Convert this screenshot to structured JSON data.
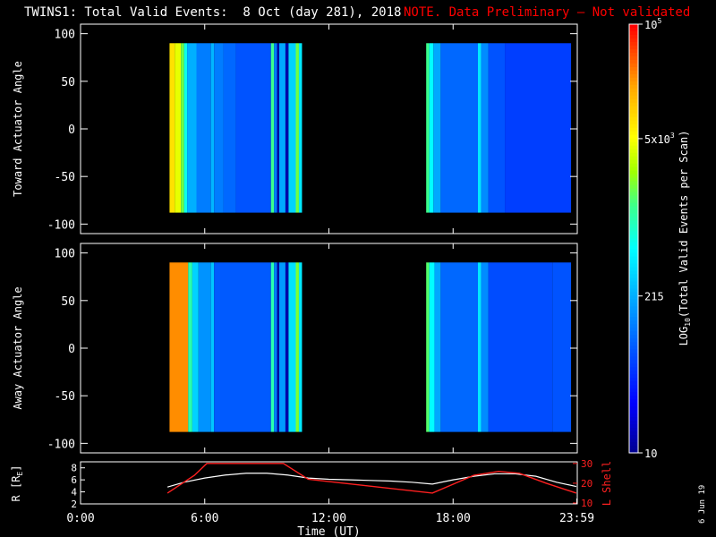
{
  "header": {
    "title": "TWINS1: Total Valid Events:  8 Oct (day 281), 2018",
    "note": "NOTE. Data Preliminary — Not validated"
  },
  "footer": {
    "date_stamp": "6 Jun 19"
  },
  "colors": {
    "background": "#000000",
    "axes": "#ffffff",
    "note_red": "#ff0000",
    "r_line": "#ffffff",
    "lshell_line": "#ff2020"
  },
  "chart_data": [
    {
      "type": "heatmap",
      "name": "toward-panel",
      "ylabel": "Toward Actuator Angle",
      "xlim": [
        0,
        24
      ],
      "ylim": [
        -110,
        110
      ],
      "yticks": [
        "100",
        "50",
        "0",
        "-50",
        "-100"
      ],
      "ytick_values": [
        100,
        50,
        0,
        -50,
        -100
      ],
      "data_blocks": [
        {
          "start_hour": 4.3,
          "end_hour": 10.7,
          "angle_range": [
            -88,
            90
          ],
          "columns": [
            {
              "start": 4.3,
              "end": 4.55,
              "level": 0.78
            },
            {
              "start": 4.55,
              "end": 4.85,
              "level": 0.72
            },
            {
              "start": 4.85,
              "end": 5.0,
              "level": 0.62
            },
            {
              "start": 5.0,
              "end": 5.15,
              "level": 0.5
            },
            {
              "start": 5.15,
              "end": 5.6,
              "level": 0.37
            },
            {
              "start": 5.6,
              "end": 6.3,
              "level": 0.3
            },
            {
              "start": 6.3,
              "end": 6.45,
              "level": 0.38
            },
            {
              "start": 6.45,
              "end": 6.9,
              "level": 0.3
            },
            {
              "start": 6.9,
              "end": 7.5,
              "level": 0.27
            },
            {
              "start": 7.5,
              "end": 9.2,
              "level": 0.24
            },
            {
              "start": 9.2,
              "end": 9.35,
              "level": 0.58
            },
            {
              "start": 9.35,
              "end": 9.5,
              "level": 0.3
            },
            {
              "start": 9.5,
              "end": 9.6,
              "level": 0.02
            },
            {
              "start": 9.6,
              "end": 9.9,
              "level": 0.36
            },
            {
              "start": 9.9,
              "end": 10.05,
              "level": 0.03
            },
            {
              "start": 10.05,
              "end": 10.4,
              "level": 0.42
            },
            {
              "start": 10.4,
              "end": 10.55,
              "level": 0.62
            },
            {
              "start": 10.55,
              "end": 10.7,
              "level": 0.45
            }
          ]
        },
        {
          "start_hour": 16.7,
          "end_hour": 23.7,
          "angle_range": [
            -88,
            90
          ],
          "columns": [
            {
              "start": 16.7,
              "end": 16.85,
              "level": 0.58
            },
            {
              "start": 16.85,
              "end": 17.05,
              "level": 0.48
            },
            {
              "start": 17.05,
              "end": 17.4,
              "level": 0.36
            },
            {
              "start": 17.4,
              "end": 19.2,
              "level": 0.27
            },
            {
              "start": 19.2,
              "end": 19.35,
              "level": 0.45
            },
            {
              "start": 19.35,
              "end": 19.7,
              "level": 0.32
            },
            {
              "start": 19.7,
              "end": 20.5,
              "level": 0.24
            },
            {
              "start": 20.5,
              "end": 23.7,
              "level": 0.21
            }
          ]
        }
      ]
    },
    {
      "type": "heatmap",
      "name": "away-panel",
      "ylabel": "Away Actuator Angle",
      "xlim": [
        0,
        24
      ],
      "ylim": [
        -110,
        110
      ],
      "yticks": [
        "100",
        "50",
        "0",
        "-50",
        "-100"
      ],
      "ytick_values": [
        100,
        50,
        0,
        -50,
        -100
      ],
      "data_blocks": [
        {
          "start_hour": 4.3,
          "end_hour": 10.7,
          "angle_range": [
            -88,
            90
          ],
          "columns": [
            {
              "start": 4.3,
              "end": 5.2,
              "level": 0.88
            },
            {
              "start": 5.2,
              "end": 5.4,
              "level": 0.55
            },
            {
              "start": 5.4,
              "end": 5.7,
              "level": 0.42
            },
            {
              "start": 5.7,
              "end": 6.3,
              "level": 0.33
            },
            {
              "start": 6.3,
              "end": 6.45,
              "level": 0.4
            },
            {
              "start": 6.45,
              "end": 9.2,
              "level": 0.25
            },
            {
              "start": 9.2,
              "end": 9.35,
              "level": 0.55
            },
            {
              "start": 9.35,
              "end": 9.5,
              "level": 0.3
            },
            {
              "start": 9.5,
              "end": 9.6,
              "level": 0.02
            },
            {
              "start": 9.6,
              "end": 9.9,
              "level": 0.34
            },
            {
              "start": 9.9,
              "end": 10.05,
              "level": 0.03
            },
            {
              "start": 10.05,
              "end": 10.4,
              "level": 0.44
            },
            {
              "start": 10.4,
              "end": 10.55,
              "level": 0.63
            },
            {
              "start": 10.55,
              "end": 10.7,
              "level": 0.45
            }
          ]
        },
        {
          "start_hour": 16.7,
          "end_hour": 23.7,
          "angle_range": [
            -88,
            90
          ],
          "columns": [
            {
              "start": 16.7,
              "end": 16.85,
              "level": 0.6
            },
            {
              "start": 16.85,
              "end": 17.1,
              "level": 0.48
            },
            {
              "start": 17.1,
              "end": 17.4,
              "level": 0.36
            },
            {
              "start": 17.4,
              "end": 19.2,
              "level": 0.27
            },
            {
              "start": 19.2,
              "end": 19.35,
              "level": 0.45
            },
            {
              "start": 19.35,
              "end": 19.7,
              "level": 0.32
            },
            {
              "start": 19.7,
              "end": 22.8,
              "level": 0.23
            },
            {
              "start": 22.8,
              "end": 23.7,
              "level": 0.24
            }
          ]
        }
      ]
    },
    {
      "type": "line",
      "name": "orbit-panel",
      "ylabel": "R [R",
      "ylabel_sub": "E",
      "ylabel_close": "]",
      "xlabel": "Time (UT)",
      "xticks": [
        "0:00",
        "6:00",
        "12:00",
        "18:00",
        "23:59"
      ],
      "xtick_values": [
        0,
        6,
        12,
        18,
        23.98
      ],
      "ylim": [
        2,
        9
      ],
      "yticks": [
        "8",
        "6",
        "4",
        "2"
      ],
      "ytick_values": [
        8,
        6,
        4,
        2
      ],
      "y2label": "L Shell",
      "y2lim": [
        10,
        30
      ],
      "y2ticks": [
        "30",
        "20",
        "10"
      ],
      "y2tick_values": [
        30,
        20,
        10
      ],
      "series": [
        {
          "axis": "left",
          "x": [
            4.2,
            5.0,
            6.0,
            7.0,
            8.0,
            9.0,
            10.0,
            11.0,
            12.0,
            13.0,
            14.0,
            15.0,
            16.0,
            17.0,
            18.0,
            19.0,
            20.0,
            21.0,
            22.0,
            23.0,
            23.95
          ],
          "values": [
            4.8,
            5.6,
            6.3,
            6.8,
            7.1,
            7.1,
            6.8,
            6.3,
            6.1,
            6.0,
            5.9,
            5.8,
            5.6,
            5.3,
            6.0,
            6.6,
            7.0,
            7.0,
            6.6,
            5.6,
            4.9
          ]
        },
        {
          "axis": "right",
          "x": [
            4.2,
            5.5,
            6.1,
            9.8,
            11.0,
            17.0,
            19.0,
            20.2,
            21.2,
            22.5,
            23.95
          ],
          "values": [
            15,
            24,
            30,
            30,
            22,
            15,
            24,
            26,
            25,
            20,
            15
          ]
        }
      ]
    }
  ],
  "colorbar": {
    "label_prefix": "LOG",
    "label_sub": "10",
    "label_rest": "(Total Valid Events per Scan)",
    "ticks": [
      {
        "base": "10",
        "exp": "5",
        "level": 1.0
      },
      {
        "base": "5x10",
        "exp": "3",
        "level": 0.733
      },
      {
        "base": "215",
        "exp": "",
        "level": 0.366
      },
      {
        "base": "10",
        "exp": "",
        "level": 0.0
      }
    ]
  }
}
